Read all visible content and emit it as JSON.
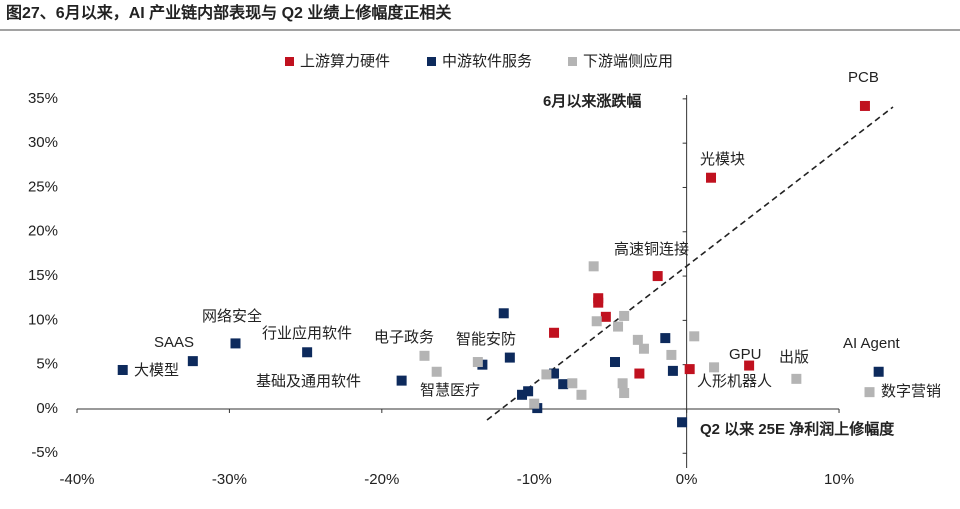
{
  "chart_data": {
    "type": "scatter",
    "title": "图27、6月以来，AI 产业链内部表现与 Q2 业绩上修幅度正相关",
    "x_label": "Q2 以来 25E 净利润上修幅度",
    "y_label": "6月以来涨跌幅",
    "xlim": [
      -40,
      14
    ],
    "ylim": [
      -7,
      36
    ],
    "xticks": [
      {
        "value": -40,
        "label": "-40%"
      },
      {
        "value": -30,
        "label": "-30%"
      },
      {
        "value": -20,
        "label": "-20%"
      },
      {
        "value": -10,
        "label": "-10%"
      },
      {
        "value": 0,
        "label": "0%"
      },
      {
        "value": 10,
        "label": "10%"
      }
    ],
    "yticks": [
      {
        "value": -5,
        "label": "-5%"
      },
      {
        "value": 0,
        "label": "0%"
      },
      {
        "value": 5,
        "label": "5%"
      },
      {
        "value": 10,
        "label": "10%"
      },
      {
        "value": 15,
        "label": "15%"
      },
      {
        "value": 20,
        "label": "20%"
      },
      {
        "value": 25,
        "label": "25%"
      },
      {
        "value": 30,
        "label": "30%"
      },
      {
        "value": 35,
        "label": "35%"
      }
    ],
    "series": [
      {
        "name": "上游算力硬件",
        "color": "#c0111f",
        "x": [
          11.7,
          1.6,
          -1.9,
          -5.8,
          -5.8,
          -5.3,
          -8.7,
          -3.1,
          0.2,
          4.1
        ],
        "values": [
          34.2,
          26.1,
          15.0,
          12.5,
          12.0,
          10.4,
          8.6,
          4.0,
          4.5,
          4.9
        ]
      },
      {
        "name": "中游软件服务",
        "color": "#0d2a5c",
        "x": [
          -37.0,
          -32.4,
          -29.6,
          -24.9,
          -18.7,
          -12.0,
          -11.6,
          -13.4,
          -10.8,
          -10.4,
          -9.8,
          -8.7,
          -8.1,
          -4.7,
          -1.4,
          -0.9,
          -0.3,
          12.6
        ],
        "values": [
          4.4,
          5.4,
          7.4,
          6.4,
          3.2,
          10.8,
          5.8,
          5.0,
          1.6,
          2.0,
          0.1,
          4.0,
          2.8,
          5.3,
          8.0,
          4.3,
          -1.5,
          4.2
        ]
      },
      {
        "name": "下游端侧应用",
        "color": "#b4b4b4",
        "x": [
          -6.1,
          -5.9,
          -4.1,
          -4.5,
          -3.2,
          -2.8,
          0.5,
          -1.0,
          1.8,
          7.2,
          12.0,
          -17.2,
          -16.4,
          -13.7,
          -9.2,
          -7.5,
          -6.9,
          -4.2,
          -4.1,
          -10.0
        ],
        "values": [
          16.1,
          9.9,
          10.5,
          9.3,
          7.8,
          6.8,
          8.2,
          6.1,
          4.7,
          3.4,
          1.9,
          6.0,
          4.2,
          5.3,
          3.9,
          2.9,
          1.6,
          2.9,
          1.8,
          0.6
        ]
      }
    ],
    "annotations": [
      "PCB",
      "光模块",
      "高速铜连接",
      "GPU",
      "出版",
      "AI Agent",
      "数字营销",
      "人形机器人",
      "大模型",
      "SAAS",
      "网络安全",
      "行业应用软件",
      "基础及通用软件",
      "电子政务",
      "智能安防",
      "智慧医疗"
    ]
  }
}
